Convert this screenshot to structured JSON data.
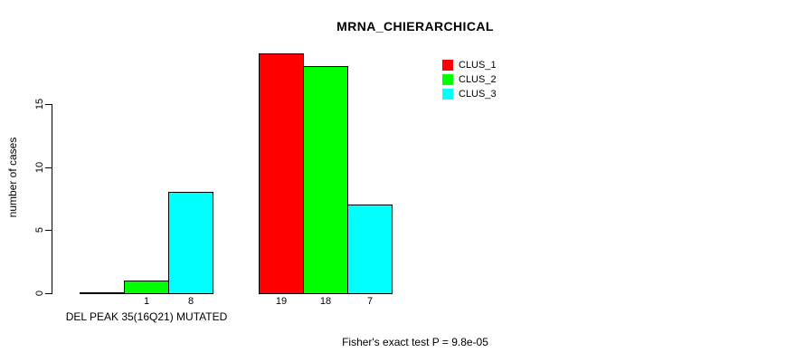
{
  "chart_data": {
    "type": "bar",
    "title": "MRNA_CHIERARCHICAL",
    "ylabel": "number of cases",
    "ylim": [
      0,
      19
    ],
    "yticks": [
      0,
      5,
      10,
      15
    ],
    "grid": false,
    "legend_position": "top-right",
    "series": [
      {
        "name": "CLUS_1",
        "color": "#ff0000"
      },
      {
        "name": "CLUS_2",
        "color": "#00ff00"
      },
      {
        "name": "CLUS_3",
        "color": "#00ffff"
      }
    ],
    "groups": [
      {
        "label": "DEL PEAK 35(16Q21) MUTATED",
        "values": [
          0,
          1,
          8
        ],
        "bar_labels": [
          "",
          "1",
          "8"
        ]
      },
      {
        "label": "",
        "values": [
          19,
          18,
          7
        ],
        "bar_labels": [
          "19",
          "18",
          "7"
        ]
      }
    ]
  },
  "footer": {
    "text": "Fisher's exact test P = 9.8e-05"
  }
}
